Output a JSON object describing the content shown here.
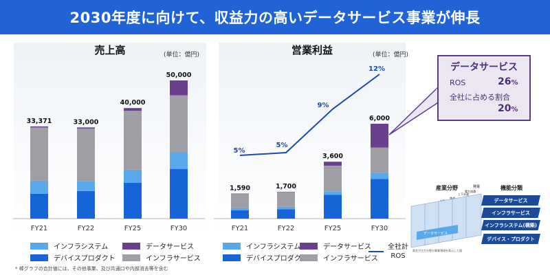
{
  "header": {
    "title": "2030年度に向けて、収益力の高いデータサービス事業が伸長"
  },
  "colors": {
    "banner": "#1f63d6",
    "device_product": "#1565d8",
    "infra_system": "#5aa8ec",
    "infra_service": "#9e9ea4",
    "data_service": "#6a3f8e",
    "ros_line": "#1a4ba8"
  },
  "chart_data": [
    {
      "type": "bar",
      "title": "売上高",
      "unit": "(単位：億円)",
      "categories": [
        "FY21",
        "FY22",
        "FY25",
        "FY30"
      ],
      "ylim": [
        0,
        50000
      ],
      "totals": [
        "33,371",
        "33,000",
        "40,000",
        "50,000"
      ],
      "series": [
        {
          "name": "デバイスプロダクト",
          "values": [
            9000,
            10000,
            13000,
            18000
          ]
        },
        {
          "name": "インフラシステム",
          "values": [
            4700,
            3500,
            4700,
            6000
          ]
        },
        {
          "name": "インフラサービス",
          "values": [
            19300,
            19100,
            21300,
            20600
          ]
        },
        {
          "name": "データサービス",
          "values": [
            371,
            400,
            1000,
            5400
          ]
        }
      ]
    },
    {
      "type": "bar",
      "title": "営業利益",
      "unit": "(単位：億円)",
      "categories": [
        "FY21",
        "FY22",
        "FY25",
        "FY30"
      ],
      "ylim": [
        0,
        6000
      ],
      "totals": [
        "1,590",
        "1,700",
        "3,600",
        "6,000"
      ],
      "series": [
        {
          "name": "デバイスプロダクト",
          "values": [
            520,
            590,
            1500,
            2500
          ]
        },
        {
          "name": "インフラシステム",
          "values": [
            150,
            160,
            230,
            400
          ]
        },
        {
          "name": "インフラサービス",
          "values": [
            900,
            930,
            1620,
            1600
          ]
        },
        {
          "name": "データサービス",
          "values": [
            20,
            20,
            250,
            1500
          ]
        }
      ],
      "line": {
        "name": "全社計ROS",
        "values": [
          5,
          5,
          9,
          12
        ],
        "labels": [
          "5%",
          "5%",
          "9%",
          "12%"
        ]
      }
    }
  ],
  "legend": {
    "infra_system": "インフラシステム",
    "data_service": "データサービス",
    "device_product": "デバイスプロダクト",
    "infra_service": "インフラサービス",
    "ros_line1": "全社計",
    "ros_line2": "ROS"
  },
  "callout": {
    "title": "データサービス",
    "ros_label": "ROS",
    "ros_value": "26",
    "ros_unit": "%",
    "share_label": "全社に占める割合",
    "share_value": "20",
    "share_unit": "%"
  },
  "diagram": {
    "industry_field": "産業分野",
    "function_class": "機能分類",
    "col_labels": [
      "自動車",
      "鉄道",
      "上下水道",
      "電力流通",
      "発電"
    ],
    "layers": [
      "データサービス",
      "インフラサービス",
      "インフラシステム(構築)",
      "デバイス・プロダクト"
    ],
    "front_label": "データサービス",
    "caption": "東芝が注力分野の事業領域を表示した図"
  },
  "footnote": "* 棒グラフの合計値には、その他事業、及び共通口や内部消去等を含む"
}
